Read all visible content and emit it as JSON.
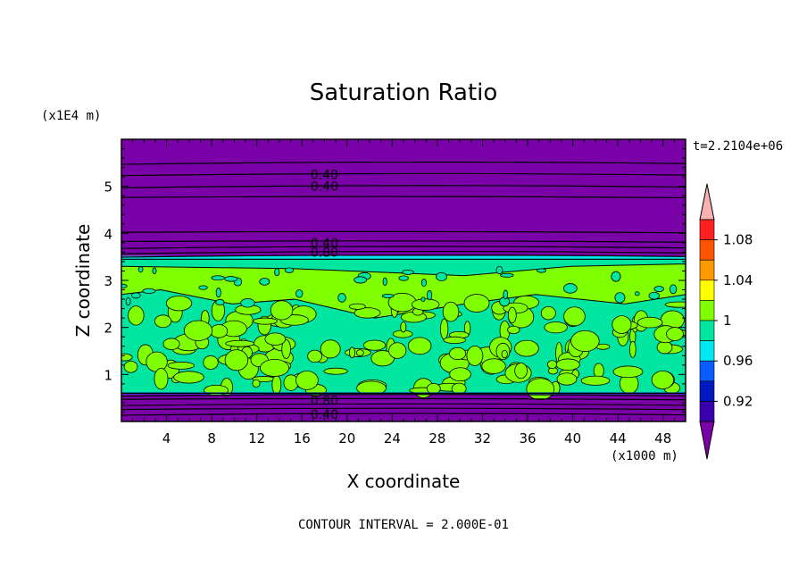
{
  "chart_data": {
    "type": "heatmap",
    "title": "Saturation Ratio",
    "xlabel": "X coordinate",
    "ylabel": "Z coordinate",
    "x_unit": "(x1000 m)",
    "y_unit": "(x1E4 m)",
    "time_label": "t=2.2104e+06",
    "footer": "CONTOUR INTERVAL = 2.000E-01",
    "xlim": [
      0,
      50
    ],
    "ylim": [
      0,
      6
    ],
    "x_ticks": [
      4,
      8,
      12,
      16,
      20,
      24,
      28,
      32,
      36,
      40,
      44,
      48
    ],
    "y_ticks": [
      1,
      2,
      3,
      4,
      5
    ],
    "contour_labels": [
      {
        "text": "0.40",
        "x": 18,
        "z": 5.25
      },
      {
        "text": "0.40",
        "x": 18,
        "z": 5.0
      },
      {
        "text": "0.40",
        "x": 18,
        "z": 3.8
      },
      {
        "text": "0.80",
        "x": 18,
        "z": 3.6
      },
      {
        "text": "0.80",
        "x": 18,
        "z": 0.45
      },
      {
        "text": "0.40",
        "x": 18,
        "z": 0.15
      }
    ],
    "colorbar": {
      "levels": [
        0.92,
        0.94,
        0.96,
        0.98,
        1.0,
        1.02,
        1.04,
        1.06,
        1.08,
        1.1
      ],
      "tick_labels": [
        "0.92",
        "0.96",
        "1",
        "1.04",
        "1.08"
      ],
      "tick_values": [
        0.92,
        0.96,
        1.0,
        1.04,
        1.08
      ],
      "colors": [
        "#7a00a8",
        "#3a00b0",
        "#0018c0",
        "#0a5cff",
        "#00e8f0",
        "#00e6a0",
        "#80ff00",
        "#ffff00",
        "#ff9900",
        "#ff5500",
        "#ff2020",
        "#f8b0b0"
      ]
    },
    "regions": [
      {
        "z0": 0.0,
        "z1": 0.6,
        "value": 0.4,
        "color": "#7a00a8"
      },
      {
        "z0": 0.6,
        "z1": 3.45,
        "value": 1.0,
        "color": "#00e6a0"
      },
      {
        "z0": 3.45,
        "z1": 3.52,
        "value": 0.97,
        "color": "#00e8f0"
      },
      {
        "z0": 3.52,
        "z1": 6.0,
        "value": 0.4,
        "color": "#7a00a8"
      }
    ]
  }
}
